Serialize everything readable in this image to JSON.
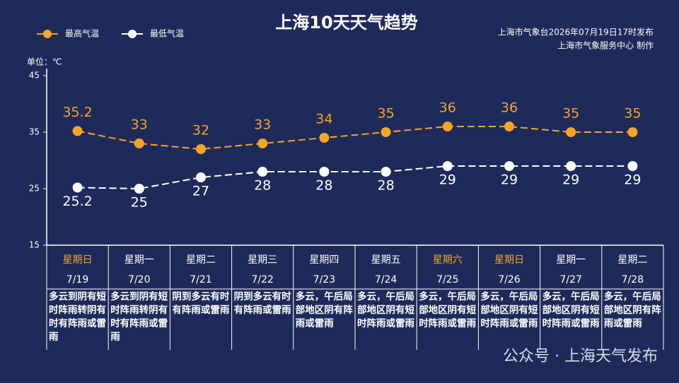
{
  "chart_data": {
    "type": "line",
    "title": "上海10天天气趋势",
    "credits": [
      "上海市气象台2026年07月19日17时发布",
      "上海市气象服务中心  制作"
    ],
    "unit_label": "单位：℃",
    "watermark": "公众号 · 上海天气发布",
    "weekdays": [
      "星期日",
      "星期一",
      "星期二",
      "星期三",
      "星期四",
      "星期五",
      "星期六",
      "星期日",
      "星期一",
      "星期二"
    ],
    "weekday_colors": [
      "#f5a623",
      "#ffffff",
      "#ffffff",
      "#ffffff",
      "#ffffff",
      "#ffffff",
      "#f5a623",
      "#f5a623",
      "#ffffff",
      "#ffffff"
    ],
    "categories": [
      "7/19",
      "7/20",
      "7/21",
      "7/22",
      "7/23",
      "7/24",
      "7/25",
      "7/26",
      "7/27",
      "7/28"
    ],
    "weather": [
      "多云到阴有短时阵雨转阴有时有阵雨或雷雨",
      "多云到阴有短时阵雨转阴有时有阵雨或雷雨",
      "阴到多云有时有阵雨或雷雨",
      "阴到多云有时有阵雨或雷雨",
      "多云，午后局部地区阴有阵雨或雷雨",
      "多云，午后局部地区阴有短时阵雨或雷雨",
      "多云，午后局部地区阴有短时阵雨或雷雨",
      "多云，午后局部地区阴有短时阵雨或雷雨",
      "多云，午后局部地区阴有短时阵雨或雷雨",
      "多云，午后局部地区阴有阵雨或雷雨"
    ],
    "series": [
      {
        "name": "最高气温",
        "color": "#f5a623",
        "values": [
          35.2,
          33,
          32,
          33,
          34,
          35,
          36,
          36,
          35,
          35
        ]
      },
      {
        "name": "最低气温",
        "color": "#ffffff",
        "values": [
          25.2,
          25,
          27,
          28,
          28,
          28,
          29,
          29,
          29,
          29
        ]
      }
    ],
    "ylim": [
      15,
      45
    ],
    "yticks": [
      15,
      25,
      35,
      45
    ]
  }
}
